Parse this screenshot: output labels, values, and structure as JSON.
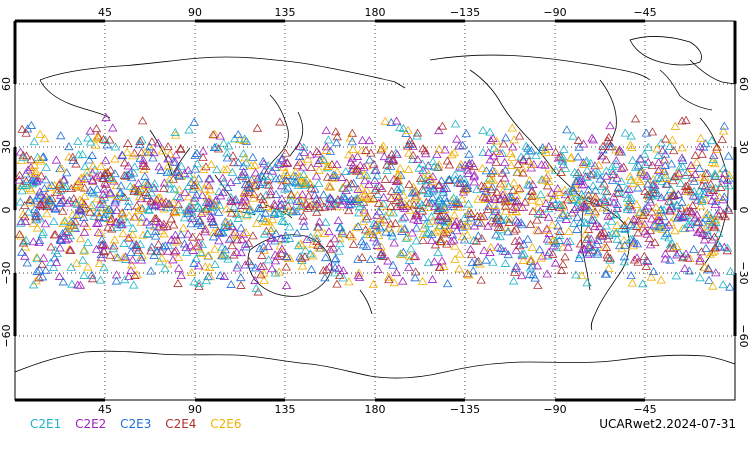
{
  "map": {
    "projection": "cylindrical equidistant",
    "center_longitude": 180,
    "lon_range": [
      0,
      360
    ],
    "lat_range": [
      -90,
      90
    ],
    "gridlines": "dotted",
    "top_lon_labels": [
      "45",
      "90",
      "135",
      "180",
      "−135",
      "−90",
      "−45"
    ],
    "bottom_lon_labels": [
      "45",
      "90",
      "135",
      "180",
      "−135",
      "−90",
      "−45"
    ],
    "lat_labels": [
      "60",
      "30",
      "0",
      "−30",
      "−60"
    ],
    "marker_shape": "open-triangle",
    "observation_band_lat": [
      -40,
      45
    ]
  },
  "legend": [
    {
      "label": "C2E1",
      "color": "#1fb5c5"
    },
    {
      "label": "C2E2",
      "color": "#a020c0"
    },
    {
      "label": "C2E3",
      "color": "#1e6fd9"
    },
    {
      "label": "C2E4",
      "color": "#b03030"
    },
    {
      "label": "C2E6",
      "color": "#f0b000"
    }
  ],
  "footer": {
    "product_label": "UCARwet2.2024-07-31"
  }
}
